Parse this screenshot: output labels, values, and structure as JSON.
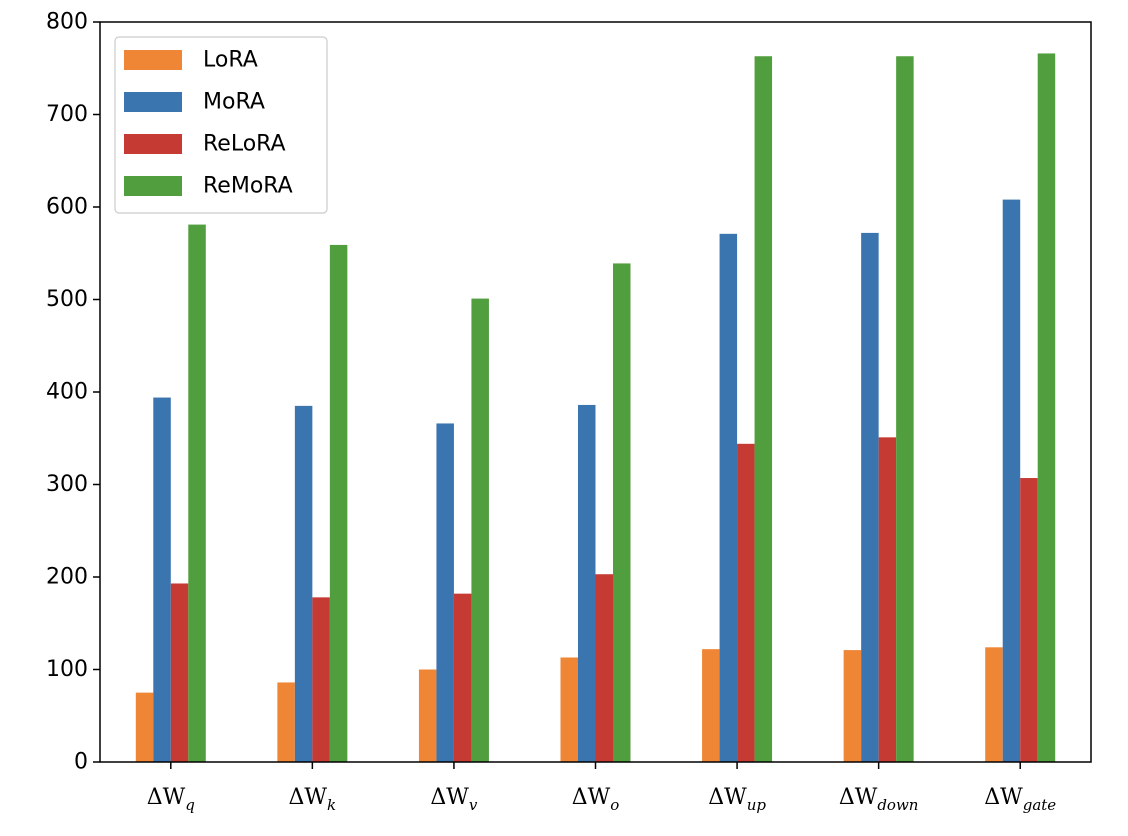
{
  "chart_data": {
    "type": "bar",
    "categories": [
      "ΔW_q",
      "ΔW_k",
      "ΔW_v",
      "ΔW_o",
      "ΔW_up",
      "ΔW_down",
      "ΔW_gate"
    ],
    "category_display": [
      {
        "main": "ΔW",
        "sub": "q"
      },
      {
        "main": "ΔW",
        "sub": "k"
      },
      {
        "main": "ΔW",
        "sub": "v"
      },
      {
        "main": "ΔW",
        "sub": "o"
      },
      {
        "main": "ΔW",
        "sub": "up"
      },
      {
        "main": "ΔW",
        "sub": "down"
      },
      {
        "main": "ΔW",
        "sub": "gate"
      }
    ],
    "series": [
      {
        "name": "LoRA",
        "color": "#ef8636",
        "values": [
          75,
          86,
          100,
          113,
          122,
          121,
          124
        ]
      },
      {
        "name": "MoRA",
        "color": "#3b75af",
        "values": [
          394,
          385,
          366,
          386,
          571,
          572,
          608
        ]
      },
      {
        "name": "ReLoRA",
        "color": "#c53a32",
        "values": [
          193,
          178,
          182,
          203,
          344,
          351,
          307
        ]
      },
      {
        "name": "ReMoRA",
        "color": "#519e3e",
        "values": [
          581,
          559,
          501,
          539,
          763,
          763,
          766
        ]
      }
    ],
    "title": "",
    "xlabel": "",
    "ylabel": "",
    "ylim": [
      0,
      800
    ],
    "yticks": [
      0,
      100,
      200,
      300,
      400,
      500,
      600,
      700,
      800
    ],
    "grid": false,
    "legend_position": "top-left"
  }
}
